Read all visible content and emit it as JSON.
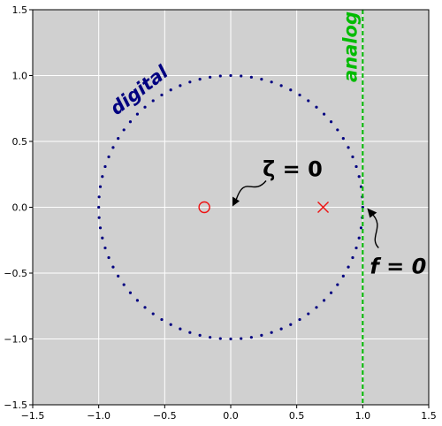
{
  "chart_data": {
    "type": "scatter",
    "title": "",
    "xlabel": "",
    "ylabel": "",
    "xlim": [
      -1.5,
      1.5
    ],
    "ylim": [
      -1.5,
      1.5
    ],
    "grid": true,
    "xticks": [
      "−1.5",
      "−1.0",
      "−0.5",
      "0.0",
      "0.5",
      "1.0",
      "1.5"
    ],
    "yticks": [
      "−1.5",
      "−1.0",
      "−0.5",
      "0.0",
      "0.5",
      "1.0",
      "1.5"
    ],
    "xtick_values": [
      -1.5,
      -1.0,
      -0.5,
      0.0,
      0.5,
      1.0,
      1.5
    ],
    "ytick_values": [
      -1.5,
      -1.0,
      -0.5,
      0.0,
      0.5,
      1.0,
      1.5
    ],
    "digital_curve": {
      "label": "digital",
      "shape": "unit circle",
      "radius": 1.0,
      "center": [
        0,
        0
      ],
      "style": "dotted",
      "color": "#000080"
    },
    "analog_line": {
      "label": "analog",
      "x": 1.0,
      "style": "dashed",
      "color": "#00bb00"
    },
    "zero": {
      "x": -0.2,
      "y": 0.0,
      "marker": "circle",
      "color": "#ee1111"
    },
    "pole": {
      "x": 0.7,
      "y": 0.0,
      "marker": "cross",
      "color": "#ee1111"
    },
    "annotations": [
      {
        "text": "ζ = 0",
        "target": [
          0.0,
          0.0
        ]
      },
      {
        "text": "f = 0",
        "target": [
          1.0,
          0.0
        ]
      }
    ],
    "colors": {
      "background": "#d0d0d0",
      "grid": "#ffffff",
      "digital": "#000080",
      "analog": "#00bb00",
      "markers": "#ee1111"
    }
  }
}
